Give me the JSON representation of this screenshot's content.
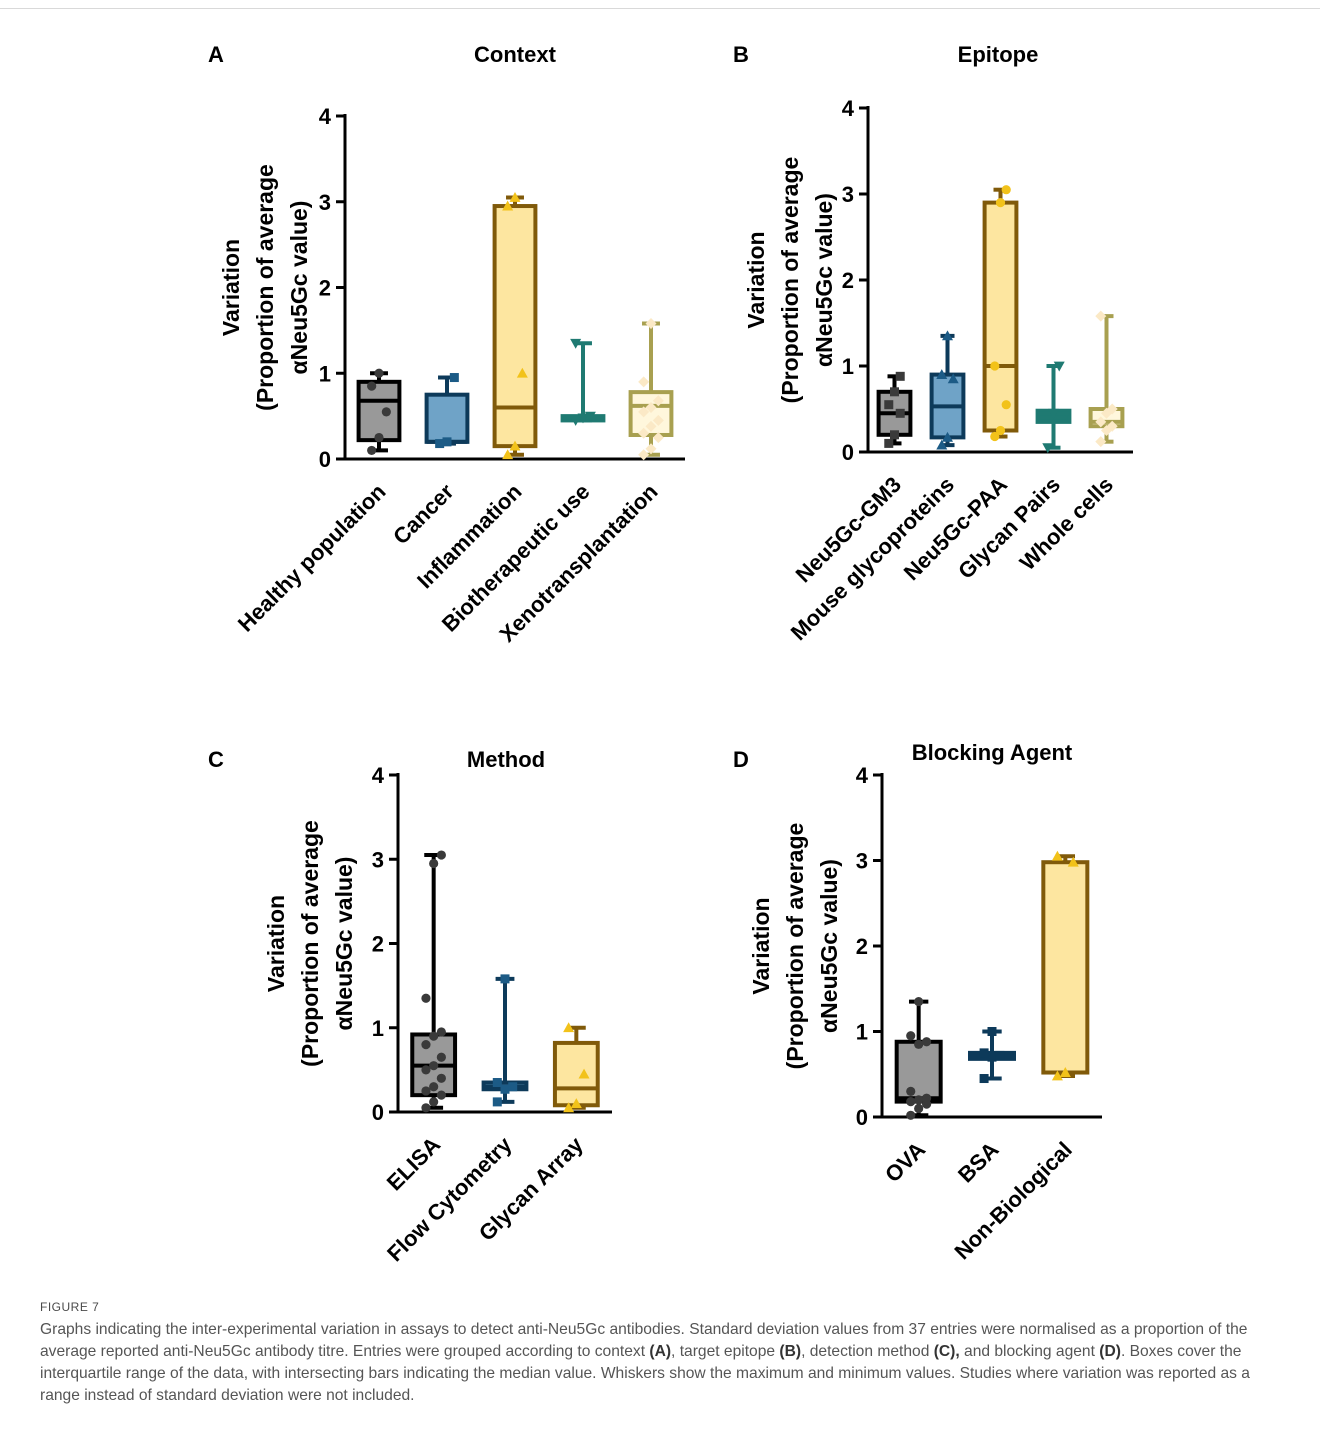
{
  "figure": {
    "label": "FIGURE 7",
    "caption_parts": [
      {
        "t": "Graphs indicating the inter-experimental variation in assays to detect anti-Neu5Gc antibodies. Standard deviation values from 37 entries were normalised as a proportion of the average reported anti-Neu5Gc antibody titre. Entries were grouped according to context ",
        "b": false
      },
      {
        "t": "(A)",
        "b": true
      },
      {
        "t": ", target epitope ",
        "b": false
      },
      {
        "t": "(B)",
        "b": true
      },
      {
        "t": ", detection method ",
        "b": false
      },
      {
        "t": "(C),",
        "b": true
      },
      {
        "t": " and blocking agent ",
        "b": false
      },
      {
        "t": "(D)",
        "b": true
      },
      {
        "t": ". Boxes cover the interquartile range of the data, with intersecting bars indicating the median value. Whiskers show the maximum and minimum values. Studies where variation was reported as a range instead of standard deviation were not included.",
        "b": false
      }
    ]
  },
  "chart_data": [
    {
      "panel": "A",
      "type": "box",
      "title": "Context",
      "ylabel": [
        "Variation",
        "(Proportion of average",
        "αNeu5Gc value)"
      ],
      "ylim": [
        0,
        4
      ],
      "yticks": [
        0,
        1,
        2,
        3,
        4
      ],
      "categories": [
        "Healthy population",
        "Cancer",
        "Inflammation",
        "Biotherapeutic use",
        "Xenotransplantation"
      ],
      "boxes": [
        {
          "min": 0.1,
          "q1": 0.22,
          "median": 0.68,
          "q3": 0.9,
          "max": 1.0,
          "fill": "#999999",
          "stroke": "#000000",
          "marker": "circle",
          "points": [
            0.1,
            0.25,
            0.55,
            0.85,
            1.0
          ]
        },
        {
          "min": 0.18,
          "q1": 0.2,
          "median": 0.2,
          "q3": 0.75,
          "max": 0.95,
          "fill": "#6fa3c7",
          "stroke": "#0d3a5a",
          "marker": "square",
          "points": [
            0.18,
            0.2,
            0.95
          ]
        },
        {
          "min": 0.05,
          "q1": 0.15,
          "median": 0.6,
          "q3": 2.95,
          "max": 3.05,
          "fill": "#fde6a0",
          "stroke": "#805a0a",
          "marker": "triangle",
          "points": [
            0.05,
            0.15,
            1.0,
            2.95,
            3.05
          ]
        },
        {
          "min": 0.45,
          "q1": 0.45,
          "median": 0.48,
          "q3": 0.5,
          "max": 1.35,
          "fill": "#1f7a72",
          "stroke": "#1f7a72",
          "marker": "triangle-down",
          "points": [
            0.45,
            0.48,
            0.5,
            1.35
          ]
        },
        {
          "min": 0.05,
          "q1": 0.28,
          "median": 0.62,
          "q3": 0.78,
          "max": 1.58,
          "fill": "#fff7dc",
          "stroke": "#a8a050",
          "marker": "diamond",
          "points": [
            0.05,
            0.12,
            0.25,
            0.3,
            0.38,
            0.45,
            0.55,
            0.6,
            0.68,
            0.9,
            1.58
          ]
        }
      ]
    },
    {
      "panel": "B",
      "type": "box",
      "title": "Epitope",
      "ylabel": [
        "Variation",
        "(Proportion of average",
        "αNeu5Gc value)"
      ],
      "ylim": [
        0,
        4
      ],
      "yticks": [
        0,
        1,
        2,
        3,
        4
      ],
      "categories": [
        "Neu5Gc-GM3",
        "Mouse glycoproteins",
        "Neu5Gc-PAA",
        "Glycan Pairs",
        "Whole cells"
      ],
      "boxes": [
        {
          "min": 0.1,
          "q1": 0.2,
          "median": 0.45,
          "q3": 0.7,
          "max": 0.88,
          "fill": "#999999",
          "stroke": "#000000",
          "marker": "square",
          "points": [
            0.1,
            0.2,
            0.45,
            0.55,
            0.7,
            0.88
          ]
        },
        {
          "min": 0.08,
          "q1": 0.17,
          "median": 0.53,
          "q3": 0.9,
          "max": 1.35,
          "fill": "#6fa3c7",
          "stroke": "#0d3a5a",
          "marker": "triangle",
          "points": [
            0.08,
            0.17,
            0.85,
            0.9,
            1.35
          ]
        },
        {
          "min": 0.18,
          "q1": 0.25,
          "median": 1.0,
          "q3": 2.9,
          "max": 3.05,
          "fill": "#fde6a0",
          "stroke": "#805a0a",
          "marker": "circle",
          "points": [
            0.18,
            0.25,
            0.55,
            1.0,
            2.9,
            3.05
          ]
        },
        {
          "min": 0.05,
          "q1": 0.35,
          "median": 0.45,
          "q3": 0.48,
          "max": 1.0,
          "fill": "#1f7a72",
          "stroke": "#1f7a72",
          "marker": "triangle-down",
          "points": [
            0.05,
            0.45,
            1.0
          ]
        },
        {
          "min": 0.12,
          "q1": 0.3,
          "median": 0.35,
          "q3": 0.5,
          "max": 1.58,
          "fill": "#fff7dc",
          "stroke": "#a8a050",
          "marker": "diamond",
          "points": [
            0.12,
            0.25,
            0.3,
            0.35,
            0.45,
            0.5,
            1.58
          ]
        }
      ]
    },
    {
      "panel": "C",
      "type": "box",
      "title": "Method",
      "ylabel": [
        "Variation",
        "(Proportion of average",
        "αNeu5Gc value)"
      ],
      "ylim": [
        0,
        4
      ],
      "yticks": [
        0,
        1,
        2,
        3,
        4
      ],
      "categories": [
        "ELISA",
        "Flow Cytometry",
        "Glycan Array"
      ],
      "boxes": [
        {
          "min": 0.05,
          "q1": 0.2,
          "median": 0.55,
          "q3": 0.92,
          "max": 3.05,
          "fill": "#999999",
          "stroke": "#000000",
          "marker": "circle",
          "points": [
            0.05,
            0.12,
            0.2,
            0.25,
            0.3,
            0.4,
            0.5,
            0.55,
            0.65,
            0.8,
            0.9,
            0.95,
            1.35,
            2.95,
            3.05
          ]
        },
        {
          "min": 0.12,
          "q1": 0.27,
          "median": 0.3,
          "q3": 0.35,
          "max": 1.58,
          "fill": "#6fa3c7",
          "stroke": "#0d3a5a",
          "marker": "square",
          "points": [
            0.12,
            0.27,
            0.3,
            0.35,
            1.58
          ]
        },
        {
          "min": 0.05,
          "q1": 0.08,
          "median": 0.28,
          "q3": 0.82,
          "max": 1.0,
          "fill": "#fde6a0",
          "stroke": "#805a0a",
          "marker": "triangle",
          "points": [
            0.05,
            0.1,
            0.45,
            1.0
          ]
        }
      ]
    },
    {
      "panel": "D",
      "type": "box",
      "title": "Blocking Agent",
      "ylabel": [
        "Variation",
        "(Proportion of average",
        "αNeu5Gc value)"
      ],
      "ylim": [
        0,
        4
      ],
      "yticks": [
        0,
        1,
        2,
        3,
        4
      ],
      "categories": [
        "OVA",
        "BSA",
        "Non-Biological"
      ],
      "boxes": [
        {
          "min": 0.02,
          "q1": 0.18,
          "median": 0.22,
          "q3": 0.88,
          "max": 1.35,
          "fill": "#999999",
          "stroke": "#000000",
          "marker": "circle",
          "points": [
            0.02,
            0.1,
            0.15,
            0.18,
            0.2,
            0.22,
            0.3,
            0.85,
            0.88,
            0.95,
            1.35
          ]
        },
        {
          "min": 0.45,
          "q1": 0.68,
          "median": 0.72,
          "q3": 0.75,
          "max": 1.0,
          "fill": "#1a4a6a",
          "stroke": "#0d3a5a",
          "marker": "square",
          "points": [
            0.45,
            0.7,
            0.72,
            0.75,
            1.0
          ]
        },
        {
          "min": 0.48,
          "q1": 0.52,
          "median": 0.52,
          "q3": 2.98,
          "max": 3.05,
          "fill": "#fde6a0",
          "stroke": "#805a0a",
          "marker": "triangle",
          "points": [
            0.48,
            0.52,
            2.98,
            3.05
          ]
        }
      ]
    }
  ]
}
